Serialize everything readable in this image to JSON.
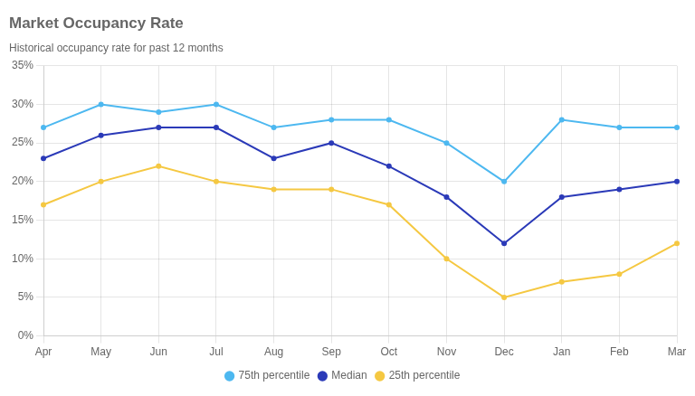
{
  "chart_data": {
    "type": "line",
    "title": "Market Occupancy Rate",
    "subtitle": "Historical occupancy rate for past 12 months",
    "categories": [
      "Apr",
      "May",
      "Jun",
      "Jul",
      "Aug",
      "Sep",
      "Oct",
      "Nov",
      "Dec",
      "Jan",
      "Feb",
      "Mar"
    ],
    "series": [
      {
        "name": "75th percentile",
        "color": "#4db8f0",
        "values": [
          27,
          30,
          29,
          30,
          27,
          28,
          28,
          25,
          20,
          28,
          27,
          27
        ]
      },
      {
        "name": "Median",
        "color": "#2b3ab8",
        "values": [
          23,
          26,
          27,
          27,
          23,
          25,
          22,
          18,
          12,
          18,
          19,
          20
        ]
      },
      {
        "name": "25th percentile",
        "color": "#f5c842",
        "values": [
          17,
          20,
          22,
          20,
          19,
          19,
          17,
          10,
          5,
          7,
          8,
          12
        ]
      }
    ],
    "ylim": [
      0,
      35
    ],
    "yticks": [
      {
        "value": 0,
        "label": "0%"
      },
      {
        "value": 5,
        "label": "5%"
      },
      {
        "value": 10,
        "label": "10%"
      },
      {
        "value": 15,
        "label": "15%"
      },
      {
        "value": 20,
        "label": "20%"
      },
      {
        "value": 25,
        "label": "25%"
      },
      {
        "value": 30,
        "label": "30%"
      },
      {
        "value": 35,
        "label": "35%"
      }
    ],
    "grid": true,
    "legend": "bottom",
    "marker": "circle"
  }
}
